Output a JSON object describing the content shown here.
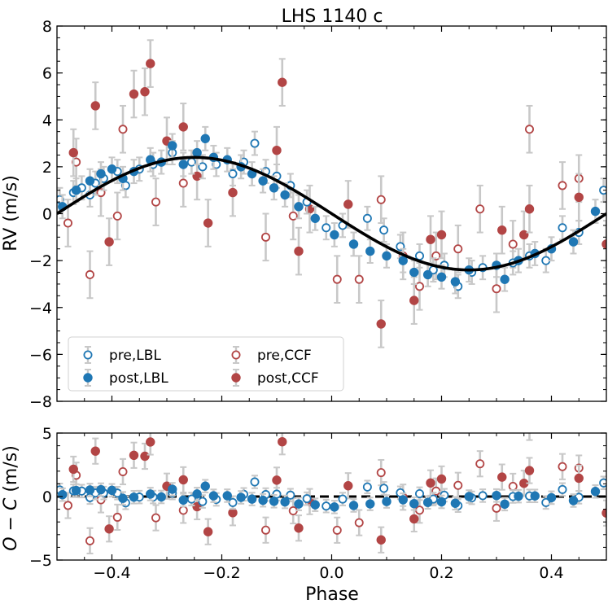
{
  "chart_data": [
    {
      "type": "scatter",
      "title": "LHS 1140 c",
      "xlabel": "Phase",
      "ylabel": "RV (m/s)",
      "xlim": [
        -0.5,
        0.5
      ],
      "ylim": [
        -8,
        8
      ],
      "xticks": [
        -0.4,
        -0.2,
        0.0,
        0.2,
        0.4
      ],
      "xtick_labels": [
        "−0.4",
        "−0.2",
        "0.0",
        "0.2",
        "0.4"
      ],
      "yticks": [
        -8,
        -6,
        -4,
        -2,
        0,
        2,
        4,
        6,
        8
      ],
      "ytick_labels": [
        "−8",
        "−6",
        "−4",
        "−2",
        "0",
        "2",
        "4",
        "6",
        "8"
      ],
      "model": {
        "name": "Keplerian fit",
        "amplitude": 2.4,
        "peak_phase": -0.25,
        "color": "#000000"
      },
      "legend_position": "lower-left",
      "legend": [
        {
          "label": "pre,LBL",
          "marker": "open",
          "color": "#1f77b4"
        },
        {
          "label": "post,LBL",
          "marker": "filled",
          "color": "#1f77b4"
        },
        {
          "label": "pre,CCF",
          "marker": "open",
          "color": "#b24545"
        },
        {
          "label": "post,CCF",
          "marker": "filled",
          "color": "#b24545"
        }
      ],
      "series": [
        {
          "name": "pre,LBL",
          "marker": "open",
          "color": "#1f77b4",
          "points": [
            [
              -0.495,
              0.6,
              0.5
            ],
            [
              -0.47,
              0.9,
              0.5
            ],
            [
              -0.455,
              1.1,
              0.5
            ],
            [
              -0.44,
              0.8,
              0.5
            ],
            [
              -0.43,
              1.3,
              0.5
            ],
            [
              -0.415,
              1.5,
              0.5
            ],
            [
              -0.39,
              1.8,
              0.5
            ],
            [
              -0.375,
              1.2,
              0.5
            ],
            [
              -0.35,
              1.9,
              0.5
            ],
            [
              -0.325,
              2.1,
              0.5
            ],
            [
              -0.29,
              2.6,
              0.5
            ],
            [
              -0.255,
              2.2,
              0.5
            ],
            [
              -0.235,
              2.0,
              0.5
            ],
            [
              -0.21,
              2.1,
              0.5
            ],
            [
              -0.18,
              1.7,
              0.5
            ],
            [
              -0.16,
              2.2,
              0.5
            ],
            [
              -0.14,
              3.0,
              0.5
            ],
            [
              -0.12,
              1.8,
              0.5
            ],
            [
              -0.1,
              1.6,
              0.5
            ],
            [
              -0.075,
              1.2,
              0.5
            ],
            [
              -0.045,
              0.5,
              0.5
            ],
            [
              -0.01,
              -0.6,
              0.5
            ],
            [
              0.02,
              -0.5,
              0.5
            ],
            [
              0.065,
              -0.2,
              0.5
            ],
            [
              0.095,
              -0.7,
              0.5
            ],
            [
              0.125,
              -1.4,
              0.5
            ],
            [
              0.16,
              -1.8,
              0.5
            ],
            [
              0.185,
              -2.4,
              0.5
            ],
            [
              0.205,
              -2.2,
              0.5
            ],
            [
              0.23,
              -3.1,
              0.5
            ],
            [
              0.255,
              -2.5,
              0.5
            ],
            [
              0.275,
              -2.3,
              0.5
            ],
            [
              0.33,
              -2.1,
              0.5
            ],
            [
              0.36,
              -1.8,
              0.5
            ],
            [
              0.39,
              -2.0,
              0.5
            ],
            [
              0.42,
              -0.6,
              0.5
            ],
            [
              0.45,
              -0.8,
              0.5
            ],
            [
              0.495,
              1.0,
              0.5
            ]
          ]
        },
        {
          "name": "post,LBL",
          "marker": "filled",
          "color": "#1f77b4",
          "points": [
            [
              -0.49,
              0.3,
              0.5
            ],
            [
              -0.465,
              1.0,
              0.5
            ],
            [
              -0.44,
              1.4,
              0.5
            ],
            [
              -0.42,
              1.7,
              0.5
            ],
            [
              -0.4,
              1.9,
              0.5
            ],
            [
              -0.38,
              1.5,
              0.5
            ],
            [
              -0.36,
              1.8,
              0.5
            ],
            [
              -0.33,
              2.3,
              0.5
            ],
            [
              -0.31,
              2.2,
              0.5
            ],
            [
              -0.29,
              2.9,
              0.5
            ],
            [
              -0.27,
              2.1,
              0.5
            ],
            [
              -0.245,
              2.6,
              0.5
            ],
            [
              -0.23,
              3.2,
              0.5
            ],
            [
              -0.215,
              2.4,
              0.5
            ],
            [
              -0.19,
              2.3,
              0.5
            ],
            [
              -0.165,
              2.0,
              0.5
            ],
            [
              -0.145,
              1.7,
              0.5
            ],
            [
              -0.125,
              1.4,
              0.5
            ],
            [
              -0.105,
              1.1,
              0.5
            ],
            [
              -0.085,
              0.8,
              0.5
            ],
            [
              -0.06,
              0.3,
              0.5
            ],
            [
              -0.03,
              -0.2,
              0.5
            ],
            [
              0.005,
              -0.9,
              0.5
            ],
            [
              0.04,
              -1.3,
              0.5
            ],
            [
              0.07,
              -1.6,
              0.5
            ],
            [
              0.1,
              -1.8,
              0.5
            ],
            [
              0.13,
              -2.0,
              0.5
            ],
            [
              0.15,
              -2.5,
              0.5
            ],
            [
              0.175,
              -2.6,
              0.5
            ],
            [
              0.2,
              -2.7,
              0.5
            ],
            [
              0.225,
              -2.9,
              0.5
            ],
            [
              0.25,
              -2.4,
              0.5
            ],
            [
              0.3,
              -2.2,
              0.5
            ],
            [
              0.315,
              -2.8,
              0.5
            ],
            [
              0.34,
              -2.0,
              0.5
            ],
            [
              0.37,
              -1.7,
              0.5
            ],
            [
              0.4,
              -1.5,
              0.5
            ],
            [
              0.44,
              -1.2,
              0.5
            ],
            [
              0.48,
              0.1,
              0.5
            ]
          ]
        },
        {
          "name": "pre,CCF",
          "marker": "open",
          "color": "#b24545",
          "points": [
            [
              -0.48,
              -0.4,
              1.0
            ],
            [
              -0.465,
              2.2,
              1.0
            ],
            [
              -0.44,
              -2.6,
              1.0
            ],
            [
              -0.42,
              0.9,
              1.0
            ],
            [
              -0.39,
              -0.1,
              1.0
            ],
            [
              -0.38,
              3.6,
              1.0
            ],
            [
              -0.32,
              0.5,
              1.0
            ],
            [
              -0.27,
              1.3,
              1.0
            ],
            [
              -0.12,
              -1.0,
              1.0
            ],
            [
              -0.07,
              -0.1,
              1.0
            ],
            [
              0.01,
              -2.8,
              1.0
            ],
            [
              0.05,
              -2.8,
              1.0
            ],
            [
              0.09,
              0.6,
              1.0
            ],
            [
              0.13,
              -1.8,
              1.0
            ],
            [
              0.16,
              -3.1,
              1.0
            ],
            [
              0.19,
              -1.8,
              1.0
            ],
            [
              0.23,
              -1.5,
              1.0
            ],
            [
              0.27,
              0.2,
              1.0
            ],
            [
              0.3,
              -3.2,
              1.0
            ],
            [
              0.33,
              -1.3,
              1.0
            ],
            [
              0.36,
              3.6,
              1.0
            ],
            [
              0.42,
              1.2,
              1.0
            ],
            [
              0.45,
              1.5,
              1.0
            ]
          ]
        },
        {
          "name": "post,CCF",
          "marker": "filled",
          "color": "#b24545",
          "points": [
            [
              -0.47,
              2.6,
              1.0
            ],
            [
              -0.43,
              4.6,
              1.0
            ],
            [
              -0.405,
              -1.2,
              1.0
            ],
            [
              -0.36,
              5.1,
              1.0
            ],
            [
              -0.34,
              5.2,
              1.0
            ],
            [
              -0.33,
              6.4,
              1.0
            ],
            [
              -0.3,
              3.1,
              1.0
            ],
            [
              -0.27,
              3.7,
              1.0
            ],
            [
              -0.245,
              1.6,
              1.0
            ],
            [
              -0.225,
              -0.4,
              1.0
            ],
            [
              -0.18,
              0.9,
              1.0
            ],
            [
              -0.1,
              2.7,
              1.0
            ],
            [
              -0.09,
              5.6,
              1.0
            ],
            [
              -0.06,
              -1.6,
              1.0
            ],
            [
              -0.04,
              0.2,
              1.0
            ],
            [
              0.03,
              0.4,
              1.0
            ],
            [
              0.09,
              -4.7,
              1.0
            ],
            [
              0.15,
              -3.7,
              1.0
            ],
            [
              0.18,
              -1.1,
              1.0
            ],
            [
              0.2,
              -0.9,
              1.0
            ],
            [
              0.31,
              -0.7,
              1.0
            ],
            [
              0.35,
              -0.9,
              1.0
            ],
            [
              0.36,
              0.2,
              1.0
            ],
            [
              0.45,
              0.7,
              1.0
            ],
            [
              0.5,
              -1.3,
              1.0
            ]
          ]
        }
      ]
    },
    {
      "type": "scatter",
      "title": "",
      "xlabel": "Phase",
      "ylabel": "O − C (m/s)",
      "xlim": [
        -0.5,
        0.5
      ],
      "ylim": [
        -5,
        5
      ],
      "xticks": [
        -0.4,
        -0.2,
        0.0,
        0.2,
        0.4
      ],
      "xtick_labels": [
        "−0.4",
        "−0.2",
        "0.0",
        "0.2",
        "0.4"
      ],
      "yticks": [
        -5,
        0,
        5
      ],
      "ytick_labels": [
        "−5",
        "0",
        "5"
      ],
      "zero_line": {
        "style": "dashed",
        "color": "#000000"
      },
      "series_from_model": "residuals of RV panel"
    }
  ]
}
